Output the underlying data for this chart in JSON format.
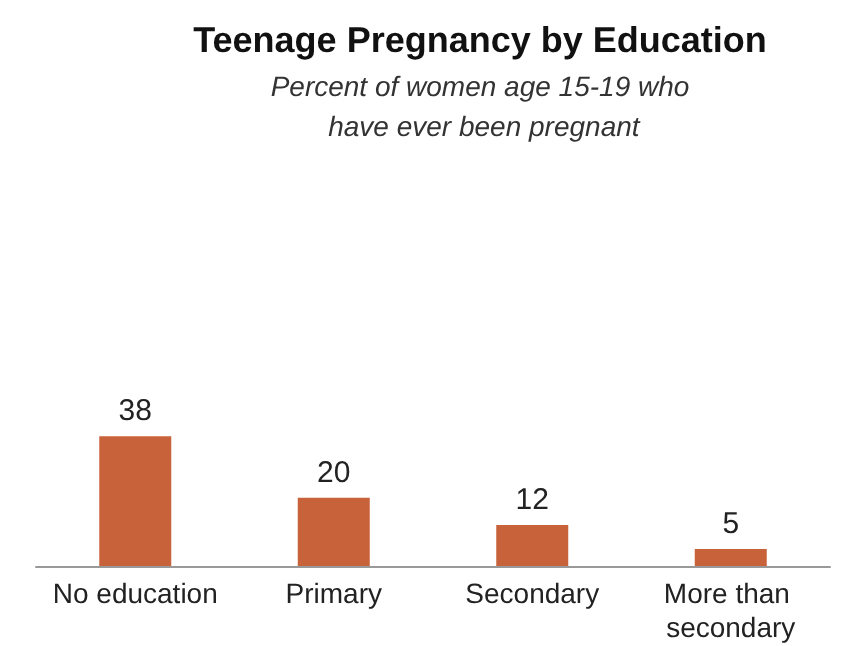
{
  "chart_data": {
    "type": "bar",
    "title": "Teenage Pregnancy by Education",
    "subtitle": "Percent of women age 15-19 who have ever been pregnant",
    "categories": [
      "No education",
      "Primary",
      "Secondary",
      "More than secondary"
    ],
    "values": [
      38,
      20,
      12,
      5
    ],
    "color": "#c8623a",
    "data_labels": true
  }
}
